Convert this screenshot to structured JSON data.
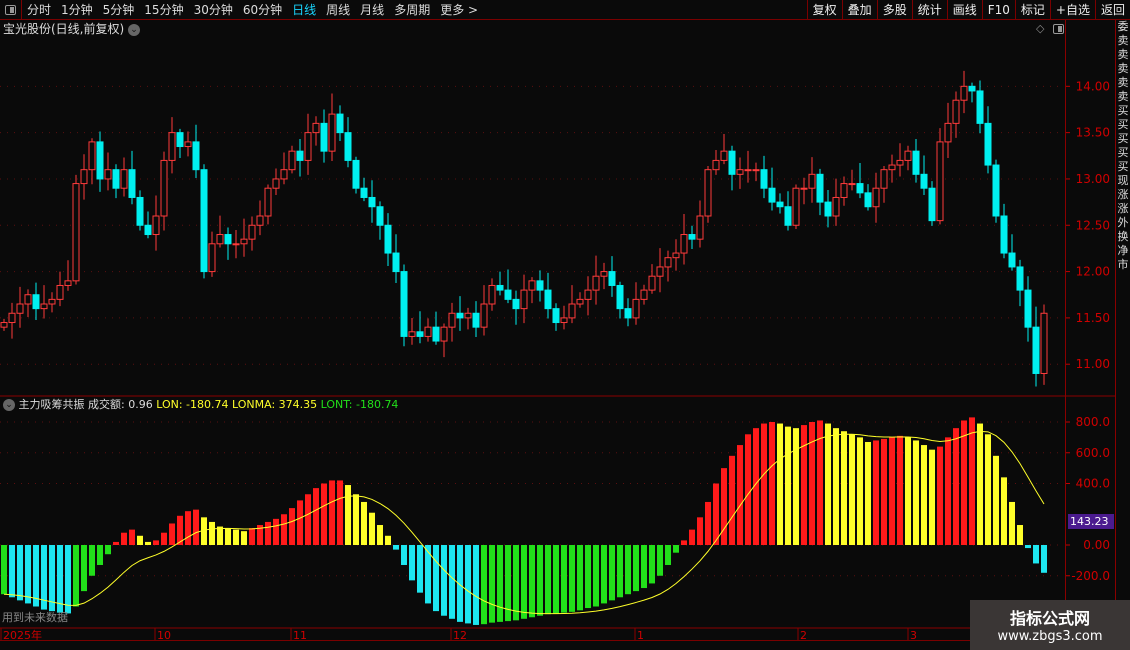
{
  "toolbar": {
    "periods": [
      "分时",
      "1分钟",
      "5分钟",
      "15分钟",
      "30分钟",
      "60分钟",
      "日线",
      "周线",
      "月线",
      "多周期",
      "更多 >"
    ],
    "active": "日线",
    "right_buttons": [
      "复权",
      "叠加",
      "多股",
      "统计",
      "画线",
      "F10",
      "标记",
      "+自选",
      "返回"
    ]
  },
  "chart_title": "宝光股份(日线,前复权)",
  "price_axis": {
    "ticks": [
      "14.00",
      "13.50",
      "13.00",
      "12.50",
      "12.00",
      "11.50",
      "11.00"
    ],
    "values": [
      14,
      13.5,
      13,
      12.5,
      12,
      11.5,
      11
    ]
  },
  "indicator": {
    "name": "主力吸筹共振",
    "amount_label": "成交额: 0.96",
    "lon_label": "LON: -180.74",
    "lonma_label": "LONMA: 374.35",
    "lont_label": "LONT: -180.74",
    "ticks": [
      "800.0",
      "600.0",
      "400.0",
      "0.00",
      "-200.0"
    ],
    "tick_values": [
      800,
      600,
      400,
      0,
      -200
    ],
    "current_value": "143.23",
    "future_note": "用到未来数据"
  },
  "time_axis": {
    "labels": [
      "2025年",
      "10",
      "11",
      "12",
      "1",
      "2",
      "3"
    ]
  },
  "colors": {
    "up": "#ff3b3b",
    "down": "#00f0f0",
    "hist_up_pos": "#ff1a1a",
    "hist_down_pos": "#ffff2a",
    "hist_down_neg": "#1ee6f0",
    "hist_up_neg": "#22e01a",
    "ma_line": "#ffff2a",
    "axis": "#c00000"
  },
  "strip_chars": [
    "委",
    "卖",
    "卖",
    "卖",
    "卖",
    "卖",
    "买",
    "买",
    "买",
    "买",
    "买",
    "现",
    "涨",
    "涨",
    "外",
    "换",
    "净",
    "市"
  ],
  "watermark": {
    "title": "指标公式网",
    "url": "www.zbgs3.com"
  },
  "chart_data": {
    "type": "candlestick+histogram",
    "close": [
      11.45,
      11.55,
      11.65,
      11.75,
      11.6,
      11.65,
      11.7,
      11.85,
      11.9,
      12.95,
      13.1,
      13.4,
      13.0,
      13.1,
      12.9,
      13.1,
      12.8,
      12.5,
      12.4,
      12.6,
      13.2,
      13.5,
      13.35,
      13.4,
      13.1,
      12.0,
      12.3,
      12.4,
      12.3,
      12.3,
      12.35,
      12.5,
      12.6,
      12.9,
      13.0,
      13.1,
      13.3,
      13.2,
      13.5,
      13.6,
      13.3,
      13.7,
      13.5,
      13.2,
      12.9,
      12.8,
      12.7,
      12.5,
      12.2,
      12.0,
      11.3,
      11.35,
      11.3,
      11.4,
      11.25,
      11.4,
      11.55,
      11.5,
      11.55,
      11.4,
      11.65,
      11.85,
      11.8,
      11.7,
      11.6,
      11.8,
      11.9,
      11.8,
      11.6,
      11.45,
      11.5,
      11.65,
      11.7,
      11.8,
      11.95,
      12.0,
      11.85,
      11.6,
      11.5,
      11.7,
      11.8,
      11.95,
      12.05,
      12.15,
      12.2,
      12.4,
      12.35,
      12.6,
      13.1,
      13.2,
      13.3,
      13.05,
      13.1,
      13.1,
      13.1,
      12.9,
      12.75,
      12.7,
      12.5,
      12.9,
      12.9,
      13.05,
      12.75,
      12.6,
      12.8,
      12.95,
      12.95,
      12.85,
      12.7,
      12.9,
      13.1,
      13.15,
      13.2,
      13.3,
      13.05,
      12.9,
      12.55,
      13.4,
      13.6,
      13.85,
      14.0,
      13.95,
      13.6,
      13.15,
      12.6,
      12.2,
      12.05,
      11.8,
      11.4,
      10.9,
      11.55
    ],
    "lon": [
      -320,
      -340,
      -360,
      -380,
      -400,
      -420,
      -430,
      -440,
      -445,
      -400,
      -300,
      -200,
      -130,
      -60,
      20,
      80,
      100,
      60,
      20,
      30,
      80,
      140,
      190,
      220,
      230,
      180,
      150,
      120,
      110,
      100,
      90,
      110,
      130,
      150,
      170,
      200,
      240,
      290,
      330,
      370,
      400,
      420,
      420,
      390,
      330,
      280,
      210,
      130,
      60,
      -30,
      -130,
      -230,
      -310,
      -380,
      -430,
      -460,
      -480,
      -500,
      -510,
      -520,
      -515,
      -505,
      -500,
      -495,
      -490,
      -480,
      -470,
      -460,
      -450,
      -445,
      -440,
      -435,
      -425,
      -410,
      -400,
      -380,
      -360,
      -340,
      -320,
      -300,
      -280,
      -250,
      -200,
      -130,
      -50,
      30,
      100,
      180,
      280,
      400,
      500,
      580,
      650,
      720,
      760,
      790,
      800,
      790,
      770,
      760,
      780,
      800,
      810,
      790,
      760,
      740,
      720,
      700,
      670,
      680,
      690,
      700,
      710,
      700,
      680,
      650,
      620,
      640,
      700,
      760,
      810,
      830,
      790,
      720,
      580,
      440,
      280,
      130,
      -20,
      -120,
      -180.74
    ],
    "price_range": [
      10.7,
      14.5
    ],
    "indicator_range": [
      -280,
      880
    ]
  }
}
